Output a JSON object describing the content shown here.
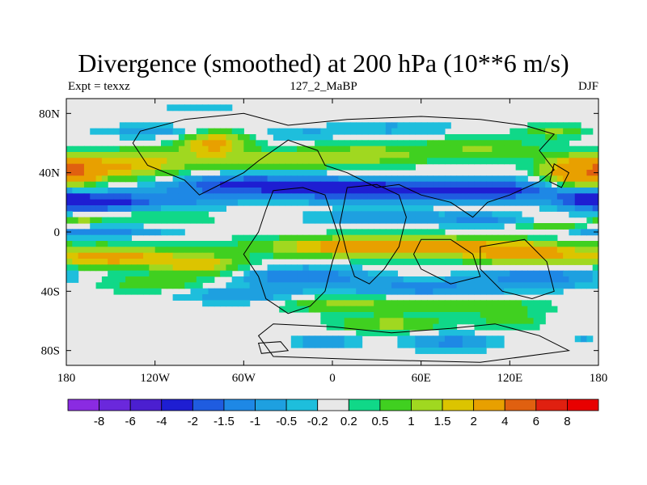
{
  "chart_data": {
    "type": "heatmap",
    "title": "Divergence (smoothed) at 200 hPa (10**6 m/s)",
    "subtitle_left": "Expt = texxz",
    "subtitle_center": "127_2_MaBP",
    "subtitle_right": "DJF",
    "xlabel": "",
    "ylabel": "",
    "xlim": [
      -180,
      180
    ],
    "ylim": [
      -90,
      90
    ],
    "x_ticks": [
      {
        "value": -180,
        "label": "180"
      },
      {
        "value": -120,
        "label": "120W"
      },
      {
        "value": -60,
        "label": "60W"
      },
      {
        "value": 0,
        "label": "0"
      },
      {
        "value": 60,
        "label": "60E"
      },
      {
        "value": 120,
        "label": "120E"
      },
      {
        "value": 180,
        "label": "180"
      }
    ],
    "y_ticks": [
      {
        "value": 80,
        "label": "80N"
      },
      {
        "value": 40,
        "label": "40N"
      },
      {
        "value": 0,
        "label": "0"
      },
      {
        "value": -40,
        "label": "40S"
      },
      {
        "value": -80,
        "label": "80S"
      }
    ],
    "colorbar": {
      "levels": [
        "-8",
        "-6",
        "-4",
        "-2",
        "-1.5",
        "-1",
        "-0.5",
        "-0.2",
        "0.2",
        "0.5",
        "1",
        "1.5",
        "2",
        "4",
        "6",
        "8"
      ],
      "colors": [
        "#8a2be2",
        "#6a28dc",
        "#4b1fd0",
        "#1e1ed2",
        "#1f5ce0",
        "#1e88e5",
        "#1ea0e0",
        "#1ebedc",
        "#e8e8e8",
        "#10d888",
        "#40d020",
        "#a0d820",
        "#dcc400",
        "#e8a000",
        "#e06010",
        "#e02010",
        "#e80000"
      ]
    },
    "features": [
      {
        "lon": -150,
        "lat": 43,
        "w": 70,
        "h": 12,
        "v": 1.8
      },
      {
        "lon": -172,
        "lat": 40,
        "w": 20,
        "h": 10,
        "v": 2.5
      },
      {
        "lon": -120,
        "lat": 50,
        "w": 80,
        "h": 10,
        "v": 0.8
      },
      {
        "lon": -80,
        "lat": 60,
        "w": 30,
        "h": 12,
        "v": 2.2
      },
      {
        "lon": -40,
        "lat": 48,
        "w": 50,
        "h": 8,
        "v": 1.2
      },
      {
        "lon": 20,
        "lat": 52,
        "w": 60,
        "h": 10,
        "v": 1.4
      },
      {
        "lon": 100,
        "lat": 56,
        "w": 60,
        "h": 10,
        "v": 1.0
      },
      {
        "lon": 165,
        "lat": 40,
        "w": 30,
        "h": 14,
        "v": 2.8
      },
      {
        "lon": 150,
        "lat": 68,
        "w": 30,
        "h": 6,
        "v": 1.1
      },
      {
        "lon": -120,
        "lat": 68,
        "w": 60,
        "h": 6,
        "v": -0.7
      },
      {
        "lon": -20,
        "lat": 66,
        "w": 40,
        "h": 5,
        "v": -0.6
      },
      {
        "lon": 40,
        "lat": 70,
        "w": 60,
        "h": 5,
        "v": -0.7
      },
      {
        "lon": -90,
        "lat": 85,
        "w": 40,
        "h": 3,
        "v": -0.5
      },
      {
        "lon": -60,
        "lat": 32,
        "w": 80,
        "h": 10,
        "v": -2.0
      },
      {
        "lon": 30,
        "lat": 28,
        "w": 90,
        "h": 10,
        "v": -2.6
      },
      {
        "lon": 120,
        "lat": 28,
        "w": 60,
        "h": 10,
        "v": -1.8
      },
      {
        "lon": 170,
        "lat": 22,
        "w": 30,
        "h": 10,
        "v": -1.6
      },
      {
        "lon": -160,
        "lat": 20,
        "w": 40,
        "h": 8,
        "v": -2.4
      },
      {
        "lon": -110,
        "lat": 22,
        "w": 60,
        "h": 8,
        "v": -1.2
      },
      {
        "lon": -120,
        "lat": 10,
        "w": 60,
        "h": 4,
        "v": 0.8
      },
      {
        "lon": -170,
        "lat": 8,
        "w": 20,
        "h": 4,
        "v": 1.0
      },
      {
        "lon": -160,
        "lat": 0,
        "w": 60,
        "h": 5,
        "v": -1.4
      },
      {
        "lon": 100,
        "lat": 8,
        "w": 40,
        "h": 6,
        "v": -1.2
      },
      {
        "lon": 30,
        "lat": 10,
        "w": 60,
        "h": 6,
        "v": -1.0
      },
      {
        "lon": 150,
        "lat": 3,
        "w": 40,
        "h": 4,
        "v": 1.0
      },
      {
        "lon": 40,
        "lat": -10,
        "w": 110,
        "h": 9,
        "v": 3.2
      },
      {
        "lon": 130,
        "lat": -15,
        "w": 50,
        "h": 10,
        "v": 2.4
      },
      {
        "lon": -150,
        "lat": -17,
        "w": 60,
        "h": 10,
        "v": 2.4
      },
      {
        "lon": -90,
        "lat": -22,
        "w": 40,
        "h": 10,
        "v": 1.8
      },
      {
        "lon": -120,
        "lat": -35,
        "w": 60,
        "h": 8,
        "v": 0.8
      },
      {
        "lon": -20,
        "lat": -30,
        "w": 60,
        "h": 8,
        "v": -1.6
      },
      {
        "lon": 60,
        "lat": -38,
        "w": 80,
        "h": 8,
        "v": -1.2
      },
      {
        "lon": 140,
        "lat": -30,
        "w": 60,
        "h": 10,
        "v": -1.4
      },
      {
        "lon": -60,
        "lat": -42,
        "w": 60,
        "h": 8,
        "v": -1.0
      },
      {
        "lon": 10,
        "lat": -48,
        "w": 60,
        "h": 8,
        "v": 1.2
      },
      {
        "lon": 100,
        "lat": -50,
        "w": 60,
        "h": 8,
        "v": 0.9
      },
      {
        "lon": 40,
        "lat": -62,
        "w": 50,
        "h": 8,
        "v": 1.2
      },
      {
        "lon": 120,
        "lat": -60,
        "w": 30,
        "h": 8,
        "v": 0.8
      },
      {
        "lon": -5,
        "lat": -74,
        "w": 30,
        "h": 6,
        "v": -1.0
      },
      {
        "lon": 80,
        "lat": -74,
        "w": 40,
        "h": 8,
        "v": -1.2
      },
      {
        "lon": 170,
        "lat": -72,
        "w": 10,
        "h": 3,
        "v": -0.6
      }
    ]
  }
}
